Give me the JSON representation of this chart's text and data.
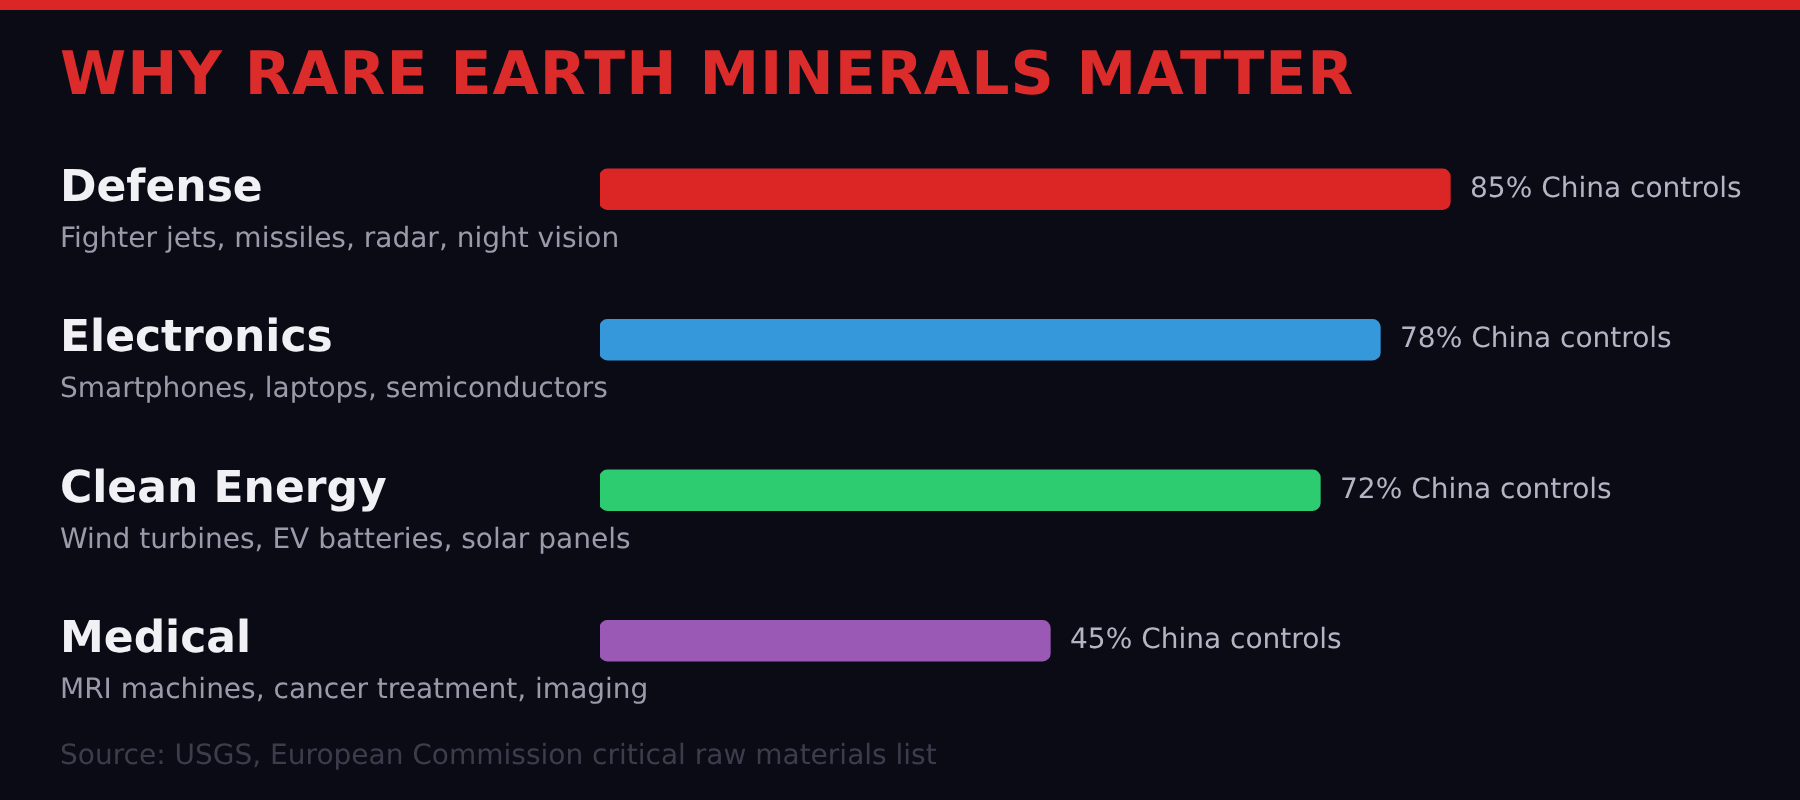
{
  "chart_data": {
    "type": "bar",
    "orientation": "horizontal",
    "title": "WHY RARE EARTH MINERALS MATTER",
    "categories": [
      "Defense",
      "Electronics",
      "Clean Energy",
      "Medical"
    ],
    "values": [
      85,
      78,
      72,
      45
    ],
    "colors": [
      "#dc2626",
      "#3498db",
      "#2ecc71",
      "#9b59b6"
    ],
    "value_labels": [
      "85% China controls",
      "78% China controls",
      "72% China controls",
      "45% China controls"
    ],
    "tick_labels": "y",
    "annotations": [
      "Fighter jets, missiles, radar, night vision",
      "Smartphones, laptops, semiconductors",
      "Wind turbines, EV batteries, solar panels",
      "MRI machines, cancer treatment, imaging",
      "Source: USGS, European Commission critical raw materials list"
    ]
  }
}
